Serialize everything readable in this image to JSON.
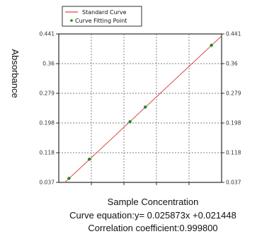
{
  "chart_data": {
    "type": "scatter",
    "title": "",
    "xlabel": "Sample Concentration",
    "ylabel": "Absorbance",
    "equation": "Curve equation:y= 0.025873x +0.021448",
    "correlation": "Correlation coefficient:0.999800",
    "grid": true,
    "legend_position": "top-left",
    "legend": [
      {
        "name": "Standard Curve",
        "marker": "line",
        "color": "#d94a4a"
      },
      {
        "name": "Curve Fitting Point",
        "marker": "dot",
        "color": "#1a8a1a"
      }
    ],
    "yticks": [
      "0.037",
      "0.118",
      "0.198",
      "0.279",
      "0.36",
      "0.441"
    ],
    "ylim": [
      0.037,
      0.441
    ],
    "xlim": [
      0,
      16
    ],
    "curve": {
      "slope": 0.025873,
      "intercept": 0.021448,
      "x_range": [
        0,
        16
      ],
      "color": "#d94a4a"
    },
    "series": [
      {
        "name": "Curve Fitting Point",
        "color": "#1a8a1a",
        "x": [
          1,
          3,
          7,
          8.5,
          15
        ],
        "y": [
          0.048,
          0.1,
          0.202,
          0.242,
          0.41
        ]
      }
    ]
  }
}
